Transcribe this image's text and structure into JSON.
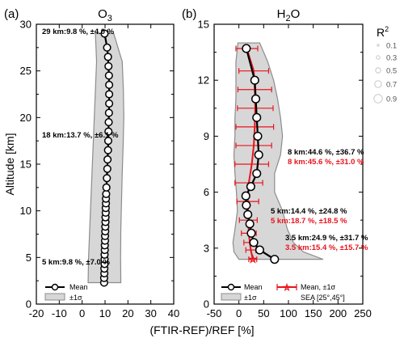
{
  "chart_data": [
    {
      "type": "line",
      "panel_label": "(a)",
      "title_base": "O",
      "title_sub": "3",
      "ylabel": "Altitude [km]",
      "xlim": [
        -20,
        40
      ],
      "ylim": [
        0,
        30
      ],
      "xticks": [
        "-20",
        "-10",
        "0",
        "10",
        "20",
        "30",
        "40"
      ],
      "yticks": [
        "0",
        "5",
        "10",
        "15",
        "20",
        "25",
        "30"
      ],
      "series": [
        {
          "name": "Mean",
          "altitude": [
            2.3,
            2.8,
            3.3,
            3.8,
            4.3,
            4.8,
            5.3,
            5.8,
            6.3,
            6.8,
            7.3,
            7.8,
            8.3,
            8.8,
            9.3,
            9.8,
            10.3,
            10.8,
            11.3,
            11.8,
            12.5,
            13.5,
            14.5,
            15.5,
            16.5,
            17.5,
            18.5,
            19.5,
            20.5,
            21.5,
            22.5,
            23.5,
            24.5,
            25.5,
            26.5,
            27.5,
            29.0
          ],
          "mean": [
            9.6,
            9.6,
            9.7,
            9.7,
            9.8,
            9.8,
            9.8,
            9.9,
            9.9,
            10.0,
            10.0,
            10.1,
            10.1,
            10.2,
            10.2,
            10.3,
            10.3,
            10.4,
            10.4,
            10.5,
            10.6,
            10.8,
            11.0,
            11.1,
            11.3,
            11.4,
            11.5,
            11.6,
            11.7,
            11.8,
            11.8,
            11.8,
            11.7,
            11.5,
            11.3,
            10.9,
            9.8
          ]
        }
      ],
      "band": {
        "name": "±1σ",
        "altitude": [
          2.3,
          5,
          8,
          11,
          14,
          17,
          20,
          23,
          26,
          29
        ],
        "lower": [
          2.6,
          2.8,
          3.3,
          3.8,
          4.3,
          4.8,
          5.3,
          5.8,
          6.3,
          5.8
        ],
        "upper": [
          16.9,
          16.8,
          16.9,
          17.2,
          17.5,
          17.9,
          18.2,
          18.0,
          17.5,
          13.8
        ]
      },
      "annotations": [
        {
          "text": "29 km:9.8 %, ±4.0 %",
          "altitude": 29
        },
        {
          "text": "18 km:13.7 %, ±6.1 %",
          "altitude": 18
        },
        {
          "text": "5 km:9.8 %, ±7.0 %",
          "altitude": 5
        }
      ],
      "legend": [
        {
          "label": "Mean"
        },
        {
          "label": "±1σ"
        }
      ]
    },
    {
      "type": "line",
      "panel_label": "(b)",
      "title_base": "H",
      "title_sub": "2",
      "title_end": "O",
      "xlim": [
        -50,
        250
      ],
      "ylim": [
        0,
        15
      ],
      "xticks": [
        "-50",
        "0",
        "50",
        "100",
        "150",
        "200",
        "250"
      ],
      "yticks": [
        "0",
        "3",
        "6",
        "9",
        "12",
        "15"
      ],
      "xlabel": "(FTIR-REF)/REF [%]",
      "series": [
        {
          "name": "Mean",
          "altitude": [
            2.4,
            2.9,
            3.3,
            3.8,
            4.3,
            4.8,
            5.3,
            5.8,
            6.3,
            7.0,
            8.0,
            9.0,
            10.0,
            11.0,
            12.0,
            13.7
          ],
          "mean": [
            72,
            42,
            30,
            25,
            22,
            18,
            15,
            14,
            24,
            36,
            40,
            38,
            36,
            34,
            32,
            15
          ]
        },
        {
          "name": "Mean, ±1σ",
          "altitude": [
            2.4,
            2.9,
            3.3,
            3.8,
            4.5,
            5.5,
            6.5,
            7.5,
            8.5,
            9.5,
            10.5,
            11.5,
            12.5,
            13.7
          ],
          "mean": [
            28,
            24,
            22,
            20,
            19,
            18,
            20,
            26,
            30,
            32,
            33,
            32,
            30,
            16
          ],
          "sigma": [
            8,
            10,
            12,
            15,
            18,
            22,
            28,
            34,
            36,
            38,
            36,
            34,
            30,
            22
          ]
        }
      ],
      "band": {
        "name": "±1σ",
        "altitude": [
          2.4,
          2.8,
          3.3,
          4.0,
          5.0,
          6.0,
          7.0,
          8.0,
          9.0,
          10.0,
          11.0,
          12.0,
          13.0,
          14.0
        ],
        "lower": [
          0,
          -10,
          -12,
          -8,
          -3,
          -5,
          -8,
          -10,
          -8,
          -8,
          -6,
          -6,
          -6,
          -2
        ],
        "upper": [
          170,
          130,
          110,
          98,
          88,
          72,
          72,
          84,
          88,
          84,
          78,
          70,
          58,
          42
        ]
      },
      "annotations": [
        {
          "text": "8 km:44.6 %, ±36.7 %",
          "color": "black"
        },
        {
          "text": "8 km:45.6 %, ±31.0 %",
          "color": "red"
        },
        {
          "text": "5 km:14.4 %, ±24.8 %",
          "color": "black"
        },
        {
          "text": "5 km:18.7 %, ±18.5 %",
          "color": "red"
        },
        {
          "text": "3.5 km:24.9 %, ±31.7 %",
          "color": "black"
        },
        {
          "text": "3.5 km:15.4 %, ±15.7 %",
          "color": "red"
        }
      ],
      "legend": [
        {
          "label": "Mean"
        },
        {
          "label": "Mean, ±1σ"
        },
        {
          "label": "±1σ"
        },
        {
          "label": "SEA [25°,45°]"
        }
      ],
      "r2_legend": {
        "title_base": "R",
        "title_sup": "2",
        "values": [
          "0.1",
          "0.3",
          "0.5",
          "0.7",
          "0.9"
        ]
      }
    }
  ]
}
